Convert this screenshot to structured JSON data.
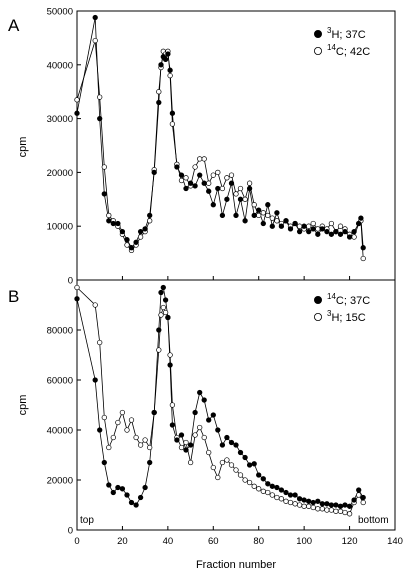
{
  "chart_data": [
    {
      "type": "scatter",
      "panel_label": "A",
      "xlabel": "",
      "ylabel": "cpm",
      "xlim": [
        0,
        140
      ],
      "ylim": [
        0,
        50000
      ],
      "xticks": [
        0,
        20,
        40,
        60,
        80,
        100,
        120,
        140
      ],
      "yticks": [
        0,
        10000,
        20000,
        30000,
        40000,
        50000
      ],
      "ytick_labels": [
        "0",
        "10000",
        "20000",
        "30000",
        "40000",
        "50000"
      ],
      "legend_position": "top-right",
      "series": [
        {
          "name_sup": "3",
          "name_rest": "H; 37C",
          "marker": "filled",
          "x": [
            0,
            8,
            10,
            12,
            14,
            16,
            18,
            20,
            22,
            24,
            26,
            28,
            30,
            32,
            34,
            36,
            37,
            38,
            39,
            40,
            41,
            42,
            44,
            46,
            48,
            50,
            52,
            54,
            56,
            58,
            60,
            62,
            64,
            66,
            68,
            70,
            72,
            74,
            76,
            78,
            80,
            82,
            84,
            86,
            88,
            90,
            92,
            94,
            96,
            98,
            100,
            102,
            104,
            106,
            108,
            110,
            112,
            114,
            116,
            118,
            120,
            122,
            124,
            125,
            126
          ],
          "values": [
            31000,
            48800,
            30000,
            16000,
            11000,
            10500,
            10500,
            9000,
            7500,
            6000,
            7000,
            9000,
            9500,
            12000,
            20000,
            33000,
            40000,
            41500,
            41000,
            42000,
            39000,
            31000,
            21000,
            19500,
            17000,
            18000,
            17500,
            19500,
            18000,
            16500,
            14000,
            17000,
            12000,
            15000,
            18000,
            12000,
            15000,
            11000,
            17000,
            12000,
            13000,
            10500,
            14000,
            10000,
            12500,
            10000,
            11000,
            9500,
            10500,
            9000,
            10000,
            9000,
            9500,
            8500,
            9500,
            9000,
            8500,
            9000,
            8500,
            9000,
            8000,
            9000,
            10500,
            11500,
            6000
          ]
        },
        {
          "name_sup": "14",
          "name_rest": "C; 42C",
          "marker": "open",
          "x": [
            0,
            8,
            10,
            12,
            14,
            16,
            18,
            20,
            22,
            24,
            26,
            28,
            30,
            32,
            34,
            36,
            37,
            38,
            39,
            40,
            41,
            42,
            44,
            46,
            48,
            50,
            52,
            54,
            56,
            58,
            60,
            62,
            64,
            66,
            68,
            70,
            72,
            74,
            76,
            78,
            80,
            82,
            84,
            86,
            88,
            90,
            92,
            94,
            96,
            98,
            100,
            102,
            104,
            106,
            108,
            110,
            112,
            114,
            116,
            118,
            120,
            122,
            124,
            125,
            126
          ],
          "values": [
            33500,
            44500,
            34000,
            21000,
            12000,
            11000,
            10000,
            8500,
            6500,
            5500,
            6500,
            8000,
            9000,
            11000,
            20500,
            35000,
            39500,
            42500,
            42000,
            42500,
            38000,
            29000,
            21500,
            18500,
            19000,
            17500,
            21000,
            22500,
            22500,
            18000,
            19500,
            20000,
            17000,
            19000,
            19500,
            16000,
            17000,
            15000,
            18000,
            14000,
            12000,
            12500,
            12000,
            11500,
            11000,
            10500,
            11000,
            10000,
            10500,
            10000,
            9500,
            10000,
            10500,
            9500,
            10000,
            9500,
            10500,
            9000,
            10000,
            9500,
            8500,
            8000,
            10500,
            11000,
            4000
          ]
        }
      ]
    },
    {
      "type": "scatter",
      "panel_label": "B",
      "xlabel": "Fraction number",
      "ylabel": "cpm",
      "xlim": [
        0,
        140
      ],
      "ylim": [
        0,
        100000
      ],
      "xticks": [
        0,
        20,
        40,
        60,
        80,
        100,
        120,
        140
      ],
      "yticks": [
        0,
        20000,
        40000,
        60000,
        80000
      ],
      "ytick_labels": [
        "0",
        "20000",
        "40000",
        "60000",
        "80000"
      ],
      "annotations": [
        "top",
        "bottom"
      ],
      "legend_position": "top-right",
      "series": [
        {
          "name_sup": "14",
          "name_rest": "C; 37C",
          "marker": "filled",
          "x": [
            0,
            8,
            10,
            12,
            14,
            16,
            18,
            20,
            22,
            24,
            26,
            28,
            30,
            32,
            34,
            36,
            37,
            38,
            39,
            40,
            41,
            42,
            44,
            46,
            48,
            50,
            52,
            54,
            56,
            58,
            60,
            62,
            64,
            66,
            68,
            70,
            72,
            74,
            76,
            78,
            80,
            82,
            84,
            86,
            88,
            90,
            92,
            94,
            96,
            98,
            100,
            102,
            104,
            106,
            108,
            110,
            112,
            114,
            116,
            118,
            120,
            122,
            124,
            126
          ],
          "values": [
            92500,
            60000,
            40000,
            27000,
            18000,
            15000,
            17000,
            16500,
            14000,
            11000,
            10000,
            13000,
            17000,
            27000,
            47000,
            80000,
            95000,
            97000,
            92000,
            85000,
            66000,
            42000,
            36000,
            38000,
            32000,
            34000,
            47000,
            55000,
            52000,
            44000,
            46000,
            40000,
            34000,
            37000,
            35000,
            34000,
            31000,
            29000,
            26000,
            26500,
            22000,
            20500,
            18500,
            17500,
            17000,
            16000,
            15000,
            14000,
            14000,
            12500,
            12000,
            11500,
            11000,
            11500,
            10500,
            10500,
            10000,
            10000,
            9500,
            10000,
            9500,
            12000,
            16000,
            13000
          ]
        },
        {
          "name_sup": "3",
          "name_rest": "H; 15C",
          "marker": "open",
          "x": [
            0,
            8,
            10,
            12,
            14,
            16,
            18,
            20,
            22,
            24,
            26,
            28,
            30,
            32,
            34,
            36,
            37,
            38,
            39,
            40,
            41,
            42,
            44,
            46,
            48,
            50,
            52,
            54,
            56,
            58,
            60,
            62,
            64,
            66,
            68,
            70,
            72,
            74,
            76,
            78,
            80,
            82,
            84,
            86,
            88,
            90,
            92,
            94,
            96,
            98,
            100,
            102,
            104,
            106,
            108,
            110,
            112,
            114,
            116,
            118,
            120,
            122,
            124,
            126
          ],
          "values": [
            97000,
            90000,
            75000,
            45000,
            33000,
            37000,
            43000,
            47000,
            40000,
            44000,
            37000,
            34000,
            36000,
            33000,
            47000,
            72000,
            86000,
            89000,
            87000,
            85000,
            70000,
            50000,
            37000,
            33000,
            35000,
            27000,
            38000,
            41000,
            37000,
            31000,
            25000,
            21000,
            27000,
            28000,
            26000,
            24000,
            22000,
            20000,
            19000,
            17500,
            16500,
            15500,
            15000,
            14000,
            13000,
            12500,
            11500,
            11000,
            10500,
            10000,
            9500,
            9500,
            9000,
            8500,
            8500,
            8000,
            8000,
            7500,
            7500,
            7000,
            6500,
            11000,
            14000,
            11000
          ]
        }
      ]
    }
  ]
}
